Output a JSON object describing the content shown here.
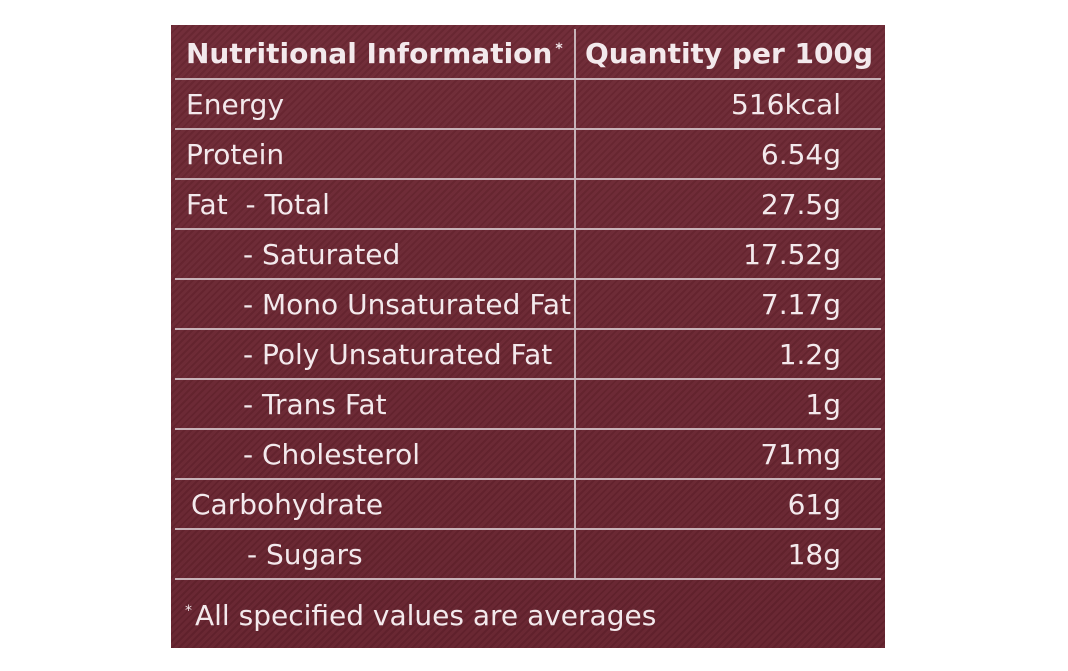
{
  "table": {
    "header": {
      "nutrient": "Nutritional Information",
      "marker": "*",
      "quantity": "Quantity per 100g"
    },
    "rows": [
      {
        "name": "Energy",
        "value": "516kcal"
      },
      {
        "name": "Protein",
        "value": "6.54g"
      },
      {
        "name": "Fat  - Total",
        "value": "27.5g"
      },
      {
        "name": "- Saturated",
        "value": "17.52g"
      },
      {
        "name": "- Mono Unsaturated Fat",
        "value": "7.17g"
      },
      {
        "name": "- Poly Unsaturated Fat",
        "value": "1.2g"
      },
      {
        "name": "- Trans Fat",
        "value": "1g"
      },
      {
        "name": "- Cholesterol",
        "value": "71mg"
      },
      {
        "name": "Carbohydrate",
        "value": "61g"
      },
      {
        "name": "- Sugars",
        "value": "18g"
      }
    ]
  },
  "footnote": {
    "marker": "*",
    "text": "All specified values are averages"
  },
  "colors": {
    "panel_background": "#6c2531",
    "text": "#f3e9ec",
    "rule_lines": "#c7b2b8"
  }
}
